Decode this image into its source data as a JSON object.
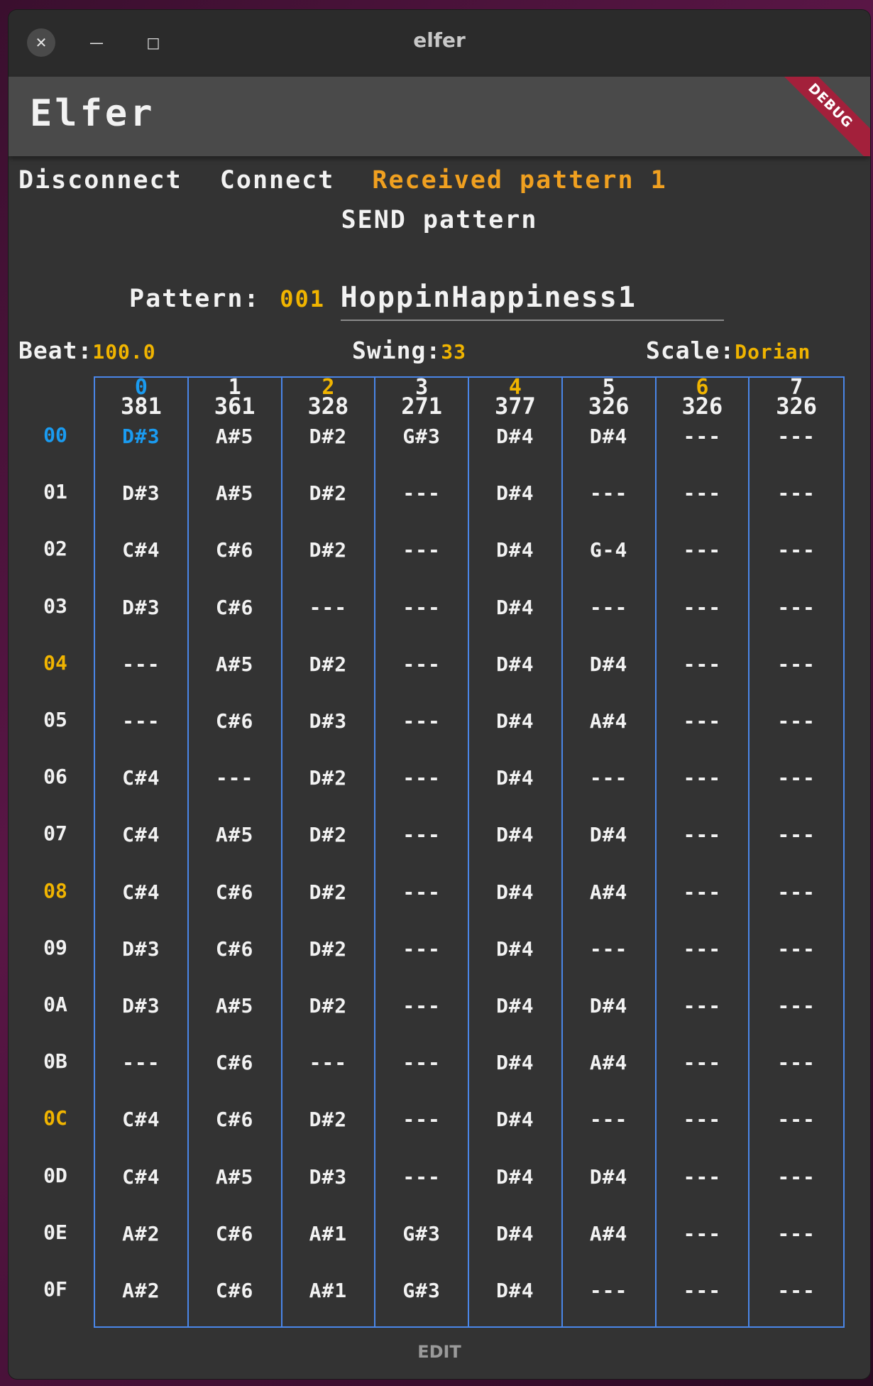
{
  "window": {
    "title": "elfer",
    "close_glyph": "✕",
    "min_glyph": "—",
    "max_glyph": "□"
  },
  "app": {
    "title": "Elfer",
    "debug_label": "DEBUG"
  },
  "controls": {
    "disconnect": "Disconnect",
    "connect": "Connect",
    "status": "Received pattern 1",
    "send": "SEND pattern"
  },
  "pattern": {
    "label": "Pattern:",
    "number": "001",
    "name": "HoppinHappiness1"
  },
  "params": {
    "beat_label": "Beat:",
    "beat": "100.0",
    "swing_label": "Swing:",
    "swing": "33",
    "scale_label": "Scale:",
    "scale": "Dorian"
  },
  "colors": {
    "accent_blue": "#1a9bf0",
    "accent_orange": "#f0b400",
    "grid_border": "#4a86e8",
    "text": "#f2f2f2"
  },
  "tracks": [
    {
      "index": "0",
      "value": "381",
      "index_color": "#1a9bf0"
    },
    {
      "index": "1",
      "value": "361",
      "index_color": "#f2f2f2"
    },
    {
      "index": "2",
      "value": "328",
      "index_color": "#f0b400"
    },
    {
      "index": "3",
      "value": "271",
      "index_color": "#f2f2f2"
    },
    {
      "index": "4",
      "value": "377",
      "index_color": "#f0b400"
    },
    {
      "index": "5",
      "value": "326",
      "index_color": "#f2f2f2"
    },
    {
      "index": "6",
      "value": "326",
      "index_color": "#f0b400"
    },
    {
      "index": "7",
      "value": "326",
      "index_color": "#f2f2f2"
    }
  ],
  "rows": [
    {
      "label": "00",
      "color": "#1a9bf0",
      "notes": [
        "D#3",
        "A#5",
        "D#2",
        "G#3",
        "D#4",
        "D#4",
        "---",
        "---"
      ]
    },
    {
      "label": "01",
      "color": "#f2f2f2",
      "notes": [
        "D#3",
        "A#5",
        "D#2",
        "---",
        "D#4",
        "---",
        "---",
        "---"
      ]
    },
    {
      "label": "02",
      "color": "#f2f2f2",
      "notes": [
        "C#4",
        "C#6",
        "D#2",
        "---",
        "D#4",
        "G-4",
        "---",
        "---"
      ]
    },
    {
      "label": "03",
      "color": "#f2f2f2",
      "notes": [
        "D#3",
        "C#6",
        "---",
        "---",
        "D#4",
        "---",
        "---",
        "---"
      ]
    },
    {
      "label": "04",
      "color": "#f0b400",
      "notes": [
        "---",
        "A#5",
        "D#2",
        "---",
        "D#4",
        "D#4",
        "---",
        "---"
      ]
    },
    {
      "label": "05",
      "color": "#f2f2f2",
      "notes": [
        "---",
        "C#6",
        "D#3",
        "---",
        "D#4",
        "A#4",
        "---",
        "---"
      ]
    },
    {
      "label": "06",
      "color": "#f2f2f2",
      "notes": [
        "C#4",
        "---",
        "D#2",
        "---",
        "D#4",
        "---",
        "---",
        "---"
      ]
    },
    {
      "label": "07",
      "color": "#f2f2f2",
      "notes": [
        "C#4",
        "A#5",
        "D#2",
        "---",
        "D#4",
        "D#4",
        "---",
        "---"
      ]
    },
    {
      "label": "08",
      "color": "#f0b400",
      "notes": [
        "C#4",
        "C#6",
        "D#2",
        "---",
        "D#4",
        "A#4",
        "---",
        "---"
      ]
    },
    {
      "label": "09",
      "color": "#f2f2f2",
      "notes": [
        "D#3",
        "C#6",
        "D#2",
        "---",
        "D#4",
        "---",
        "---",
        "---"
      ]
    },
    {
      "label": "0A",
      "color": "#f2f2f2",
      "notes": [
        "D#3",
        "A#5",
        "D#2",
        "---",
        "D#4",
        "D#4",
        "---",
        "---"
      ]
    },
    {
      "label": "0B",
      "color": "#f2f2f2",
      "notes": [
        "---",
        "C#6",
        "---",
        "---",
        "D#4",
        "A#4",
        "---",
        "---"
      ]
    },
    {
      "label": "0C",
      "color": "#f0b400",
      "notes": [
        "C#4",
        "C#6",
        "D#2",
        "---",
        "D#4",
        "---",
        "---",
        "---"
      ]
    },
    {
      "label": "0D",
      "color": "#f2f2f2",
      "notes": [
        "C#4",
        "A#5",
        "D#3",
        "---",
        "D#4",
        "D#4",
        "---",
        "---"
      ]
    },
    {
      "label": "0E",
      "color": "#f2f2f2",
      "notes": [
        "A#2",
        "C#6",
        "A#1",
        "G#3",
        "D#4",
        "A#4",
        "---",
        "---"
      ]
    },
    {
      "label": "0F",
      "color": "#f2f2f2",
      "notes": [
        "A#2",
        "C#6",
        "A#1",
        "G#3",
        "D#4",
        "---",
        "---",
        "---"
      ]
    }
  ],
  "active_cell": {
    "row": 0,
    "col": 0,
    "color": "#1a9bf0"
  },
  "footer": {
    "edit": "EDIT"
  }
}
